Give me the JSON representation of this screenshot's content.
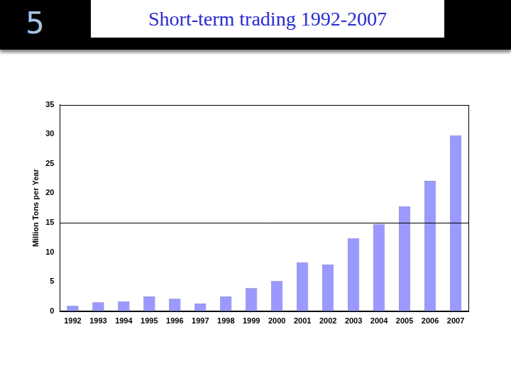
{
  "page_number": "5",
  "chart_data": {
    "type": "bar",
    "title": "Short-term trading 1992-2007",
    "y_label": "Million Tons per Year",
    "categories": [
      "1992",
      "1993",
      "1994",
      "1995",
      "1996",
      "1997",
      "1998",
      "1999",
      "2000",
      "2001",
      "2002",
      "2003",
      "2004",
      "2005",
      "2006",
      "2007"
    ],
    "values": [
      0.9,
      1.5,
      1.7,
      2.5,
      2.1,
      1.3,
      2.5,
      3.9,
      5.1,
      8.3,
      7.9,
      12.4,
      14.8,
      17.8,
      22.1,
      29.8
    ],
    "color": "#9999ff",
    "ylim": [
      0,
      35
    ],
    "yticks": [
      0,
      5,
      10,
      15,
      20,
      25,
      30,
      35
    ],
    "reference_line": 15,
    "grid": false
  }
}
